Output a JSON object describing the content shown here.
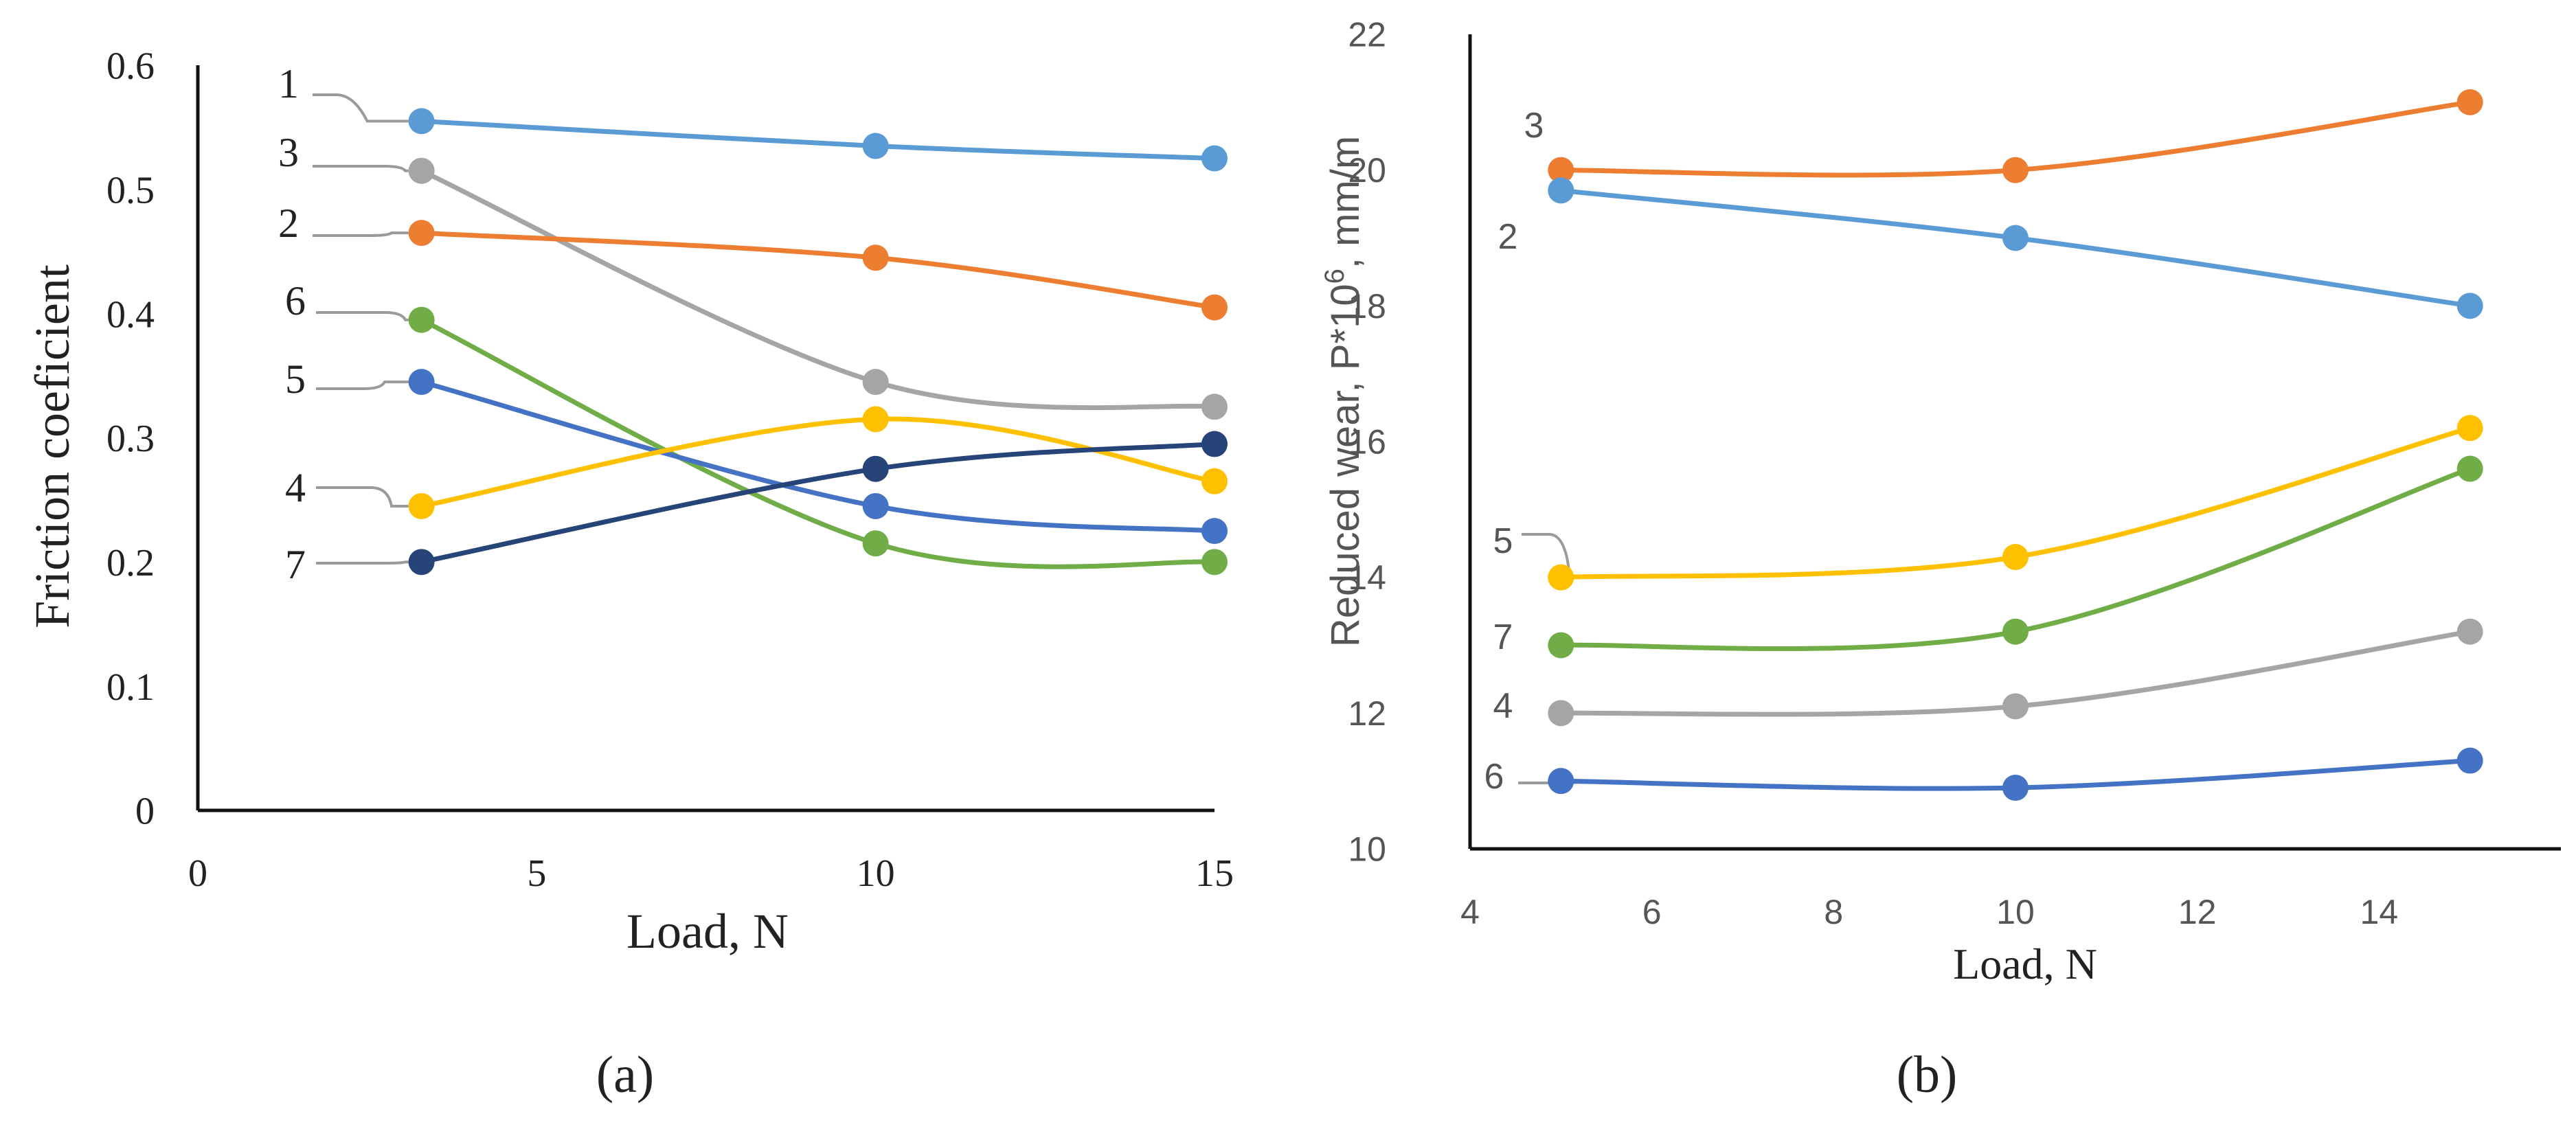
{
  "chart_data": [
    {
      "panel_label": "(a)",
      "type": "line",
      "xlabel": "Load, N",
      "ylabel": "Friction coeficient",
      "xlim": [
        0,
        15
      ],
      "ylim": [
        0,
        0.6
      ],
      "x_ticks": [
        "0",
        "5",
        "10",
        "15"
      ],
      "y_ticks": [
        "0",
        "0.1",
        "0.2",
        "0.3",
        "0.4",
        "0.5",
        "0.6"
      ],
      "grid": false,
      "series": [
        {
          "name": "1",
          "color": "#5B9BD5",
          "x": [
            3.3,
            10,
            15
          ],
          "values": [
            0.555,
            0.535,
            0.525
          ]
        },
        {
          "name": "3",
          "color": "#A5A5A5",
          "x": [
            3.3,
            10,
            15
          ],
          "values": [
            0.515,
            0.345,
            0.325
          ]
        },
        {
          "name": "2",
          "color": "#ED7D31",
          "x": [
            3.3,
            10,
            15
          ],
          "values": [
            0.465,
            0.445,
            0.405
          ]
        },
        {
          "name": "6",
          "color": "#70AD47",
          "x": [
            3.3,
            10,
            15
          ],
          "values": [
            0.395,
            0.215,
            0.2
          ]
        },
        {
          "name": "5",
          "color": "#4472C4",
          "x": [
            3.3,
            10,
            15
          ],
          "values": [
            0.345,
            0.245,
            0.225
          ]
        },
        {
          "name": "4",
          "color": "#FFC000",
          "x": [
            3.3,
            10,
            15
          ],
          "values": [
            0.245,
            0.315,
            0.265
          ]
        },
        {
          "name": "7",
          "color": "#264478",
          "x": [
            3.3,
            10,
            15
          ],
          "values": [
            0.2,
            0.275,
            0.295
          ]
        }
      ]
    },
    {
      "panel_label": "(b)",
      "type": "line",
      "xlabel": "Load, N",
      "ylabel": "Reduced wear, P*10",
      "ylabel_sup": "6",
      "ylabel_suffix": ", mm/m",
      "xlim": [
        4,
        16
      ],
      "ylim": [
        10,
        22
      ],
      "x_ticks": [
        "4",
        "6",
        "8",
        "10",
        "12",
        "14"
      ],
      "y_ticks": [
        "10",
        "12",
        "14",
        "16",
        "18",
        "20",
        "22"
      ],
      "grid": false,
      "series": [
        {
          "name": "3",
          "color": "#ED7D31",
          "x": [
            5,
            10,
            15
          ],
          "values": [
            20.0,
            20.0,
            21.0
          ]
        },
        {
          "name": "2",
          "color": "#5B9BD5",
          "x": [
            5,
            10,
            15
          ],
          "values": [
            19.7,
            19.0,
            18.0
          ]
        },
        {
          "name": "5",
          "color": "#FFC000",
          "x": [
            5,
            10,
            15
          ],
          "values": [
            14.0,
            14.3,
            16.2
          ]
        },
        {
          "name": "7",
          "color": "#70AD47",
          "x": [
            5,
            10,
            15
          ],
          "values": [
            13.0,
            13.2,
            15.6
          ]
        },
        {
          "name": "4",
          "color": "#A5A5A5",
          "x": [
            5,
            10,
            15
          ],
          "values": [
            12.0,
            12.1,
            13.2
          ]
        },
        {
          "name": "6",
          "color": "#4472C4",
          "x": [
            5,
            10,
            15
          ],
          "values": [
            11.0,
            10.9,
            11.3
          ]
        }
      ]
    }
  ]
}
